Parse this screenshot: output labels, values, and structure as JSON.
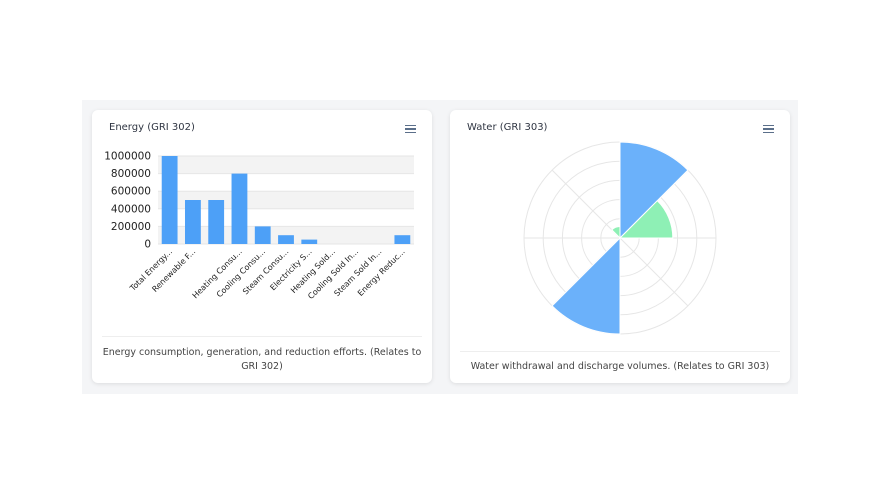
{
  "energy": {
    "title": "Energy (GRI 302)",
    "caption": "Energy consumption, generation, and reduction efforts. (Relates to GRI 302)",
    "chart_data": {
      "type": "bar",
      "categories": [
        "Total Energy...",
        "Renewable F...",
        "",
        "Heating Consu...",
        "Cooling Consu...",
        "Steam Consu...",
        "Electricity S...",
        "Heating Sold...",
        "Cooling Sold In...",
        "Steam Sold In...",
        "Energy Reduc..."
      ],
      "values": [
        1000000,
        500000,
        500000,
        800000,
        200000,
        100000,
        50000,
        0,
        0,
        0,
        100000
      ],
      "ylim": [
        0,
        1000000
      ],
      "yticks": [
        "1000000",
        "800000",
        "600000",
        "400000",
        "200000",
        "0"
      ],
      "ytick_values": [
        1000000,
        800000,
        600000,
        400000,
        200000,
        0
      ],
      "color": "#4da0f7",
      "grid": true
    }
  },
  "water": {
    "title": "Water (GRI 303)",
    "caption": "Water withdrawal and discharge volumes. (Relates to GRI 303)",
    "chart_data": {
      "type": "polar-area",
      "sectors": 8,
      "rings": 5,
      "values": [
        1.0,
        0.55,
        0,
        0,
        1.0,
        0,
        0,
        0.12
      ],
      "colors": [
        "#6bb1fa",
        "#8ef0b5",
        "#6bb1fa",
        "#8ef0b5",
        "#6bb1fa",
        "#8ef0b5",
        "#6bb1fa",
        "#8ef0b5"
      ],
      "grid": true
    }
  }
}
